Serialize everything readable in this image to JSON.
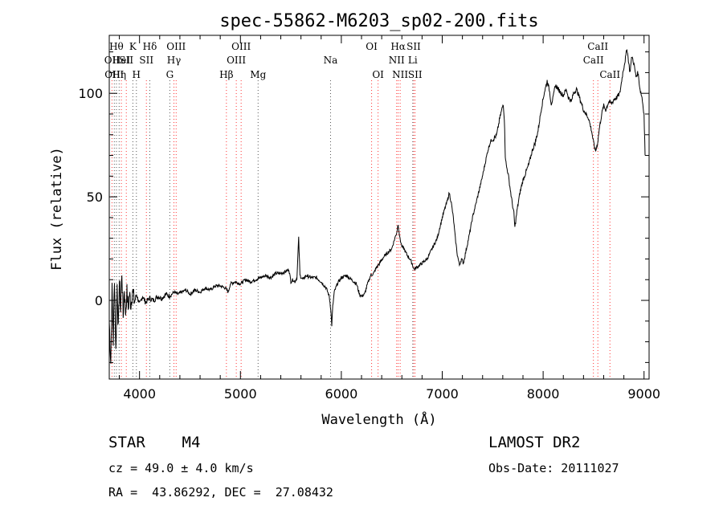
{
  "chart_data": {
    "type": "line",
    "title": "spec-55862-M6203_sp02-200.fits",
    "xlabel": "Wavelength (Å)",
    "ylabel": "Flux (relative)",
    "xlim": [
      3700,
      9050
    ],
    "ylim": [
      -38,
      128
    ],
    "xticks": [
      4000,
      5000,
      6000,
      7000,
      8000,
      9000
    ],
    "yticks": [
      0,
      50,
      100
    ],
    "grid": false,
    "legend": "none",
    "series": [
      {
        "color": "#000000",
        "points": [
          [
            3700,
            -10
          ],
          [
            3715,
            -30
          ],
          [
            3728,
            5
          ],
          [
            3740,
            -20
          ],
          [
            3752,
            12
          ],
          [
            3765,
            -25
          ],
          [
            3778,
            8
          ],
          [
            3790,
            -15
          ],
          [
            3800,
            10
          ],
          [
            3812,
            -5
          ],
          [
            3825,
            14
          ],
          [
            3838,
            -8
          ],
          [
            3850,
            6
          ],
          [
            3862,
            -6
          ],
          [
            3875,
            4
          ],
          [
            3888,
            -4
          ],
          [
            3900,
            3
          ],
          [
            3915,
            -2
          ],
          [
            3930,
            5
          ],
          [
            3950,
            -1
          ],
          [
            3970,
            3
          ],
          [
            4000,
            -2
          ],
          [
            4030,
            2
          ],
          [
            4060,
            -1
          ],
          [
            4100,
            1
          ],
          [
            4140,
            0
          ],
          [
            4180,
            2
          ],
          [
            4220,
            1
          ],
          [
            4260,
            3
          ],
          [
            4300,
            2
          ],
          [
            4340,
            4
          ],
          [
            4380,
            3
          ],
          [
            4420,
            4
          ],
          [
            4460,
            5
          ],
          [
            4500,
            3
          ],
          [
            4550,
            5
          ],
          [
            4600,
            4
          ],
          [
            4650,
            6
          ],
          [
            4700,
            5
          ],
          [
            4750,
            7
          ],
          [
            4800,
            7
          ],
          [
            4850,
            6
          ],
          [
            4880,
            4
          ],
          [
            4900,
            8
          ],
          [
            4950,
            9
          ],
          [
            5000,
            8
          ],
          [
            5050,
            10
          ],
          [
            5100,
            9
          ],
          [
            5150,
            10
          ],
          [
            5200,
            11
          ],
          [
            5250,
            12
          ],
          [
            5300,
            11
          ],
          [
            5350,
            13
          ],
          [
            5400,
            13
          ],
          [
            5450,
            14
          ],
          [
            5480,
            15
          ],
          [
            5500,
            9
          ],
          [
            5520,
            10
          ],
          [
            5540,
            9
          ],
          [
            5560,
            11
          ],
          [
            5577,
            30
          ],
          [
            5590,
            12
          ],
          [
            5620,
            10
          ],
          [
            5650,
            12
          ],
          [
            5700,
            11
          ],
          [
            5750,
            11
          ],
          [
            5800,
            9
          ],
          [
            5850,
            6
          ],
          [
            5880,
            2
          ],
          [
            5895,
            -4
          ],
          [
            5905,
            -12
          ],
          [
            5915,
            -3
          ],
          [
            5930,
            4
          ],
          [
            5960,
            8
          ],
          [
            6000,
            11
          ],
          [
            6050,
            12
          ],
          [
            6100,
            10
          ],
          [
            6150,
            8
          ],
          [
            6180,
            3
          ],
          [
            6200,
            2
          ],
          [
            6230,
            3
          ],
          [
            6260,
            8
          ],
          [
            6290,
            12
          ],
          [
            6320,
            13
          ],
          [
            6350,
            16
          ],
          [
            6380,
            18
          ],
          [
            6420,
            21
          ],
          [
            6460,
            23
          ],
          [
            6500,
            25
          ],
          [
            6530,
            30
          ],
          [
            6550,
            33
          ],
          [
            6563,
            37
          ],
          [
            6580,
            30
          ],
          [
            6600,
            26
          ],
          [
            6620,
            25
          ],
          [
            6650,
            22
          ],
          [
            6680,
            20
          ],
          [
            6700,
            18
          ],
          [
            6720,
            15
          ],
          [
            6750,
            16
          ],
          [
            6800,
            18
          ],
          [
            6850,
            20
          ],
          [
            6900,
            25
          ],
          [
            6950,
            30
          ],
          [
            7000,
            40
          ],
          [
            7030,
            45
          ],
          [
            7050,
            48
          ],
          [
            7070,
            52
          ],
          [
            7090,
            47
          ],
          [
            7110,
            40
          ],
          [
            7130,
            30
          ],
          [
            7150,
            22
          ],
          [
            7170,
            17
          ],
          [
            7190,
            20
          ],
          [
            7210,
            18
          ],
          [
            7240,
            25
          ],
          [
            7270,
            32
          ],
          [
            7300,
            40
          ],
          [
            7330,
            46
          ],
          [
            7360,
            52
          ],
          [
            7390,
            58
          ],
          [
            7420,
            65
          ],
          [
            7450,
            72
          ],
          [
            7480,
            77
          ],
          [
            7510,
            78
          ],
          [
            7540,
            80
          ],
          [
            7570,
            88
          ],
          [
            7590,
            92
          ],
          [
            7605,
            95
          ],
          [
            7615,
            88
          ],
          [
            7625,
            70
          ],
          [
            7635,
            65
          ],
          [
            7650,
            62
          ],
          [
            7670,
            55
          ],
          [
            7690,
            48
          ],
          [
            7710,
            42
          ],
          [
            7720,
            35
          ],
          [
            7740,
            43
          ],
          [
            7770,
            52
          ],
          [
            7800,
            58
          ],
          [
            7830,
            62
          ],
          [
            7860,
            66
          ],
          [
            7890,
            72
          ],
          [
            7920,
            76
          ],
          [
            7950,
            82
          ],
          [
            7980,
            92
          ],
          [
            8010,
            100
          ],
          [
            8040,
            106
          ],
          [
            8060,
            102
          ],
          [
            8080,
            95
          ],
          [
            8100,
            98
          ],
          [
            8120,
            104
          ],
          [
            8150,
            102
          ],
          [
            8180,
            100
          ],
          [
            8200,
            99
          ],
          [
            8230,
            102
          ],
          [
            8250,
            98
          ],
          [
            8280,
            96
          ],
          [
            8300,
            100
          ],
          [
            8330,
            102
          ],
          [
            8360,
            98
          ],
          [
            8400,
            92
          ],
          [
            8450,
            88
          ],
          [
            8480,
            82
          ],
          [
            8500,
            76
          ],
          [
            8520,
            72
          ],
          [
            8540,
            76
          ],
          [
            8560,
            84
          ],
          [
            8580,
            90
          ],
          [
            8600,
            94
          ],
          [
            8620,
            92
          ],
          [
            8650,
            96
          ],
          [
            8680,
            95
          ],
          [
            8700,
            97
          ],
          [
            8730,
            98
          ],
          [
            8760,
            100
          ],
          [
            8790,
            110
          ],
          [
            8820,
            118
          ],
          [
            8830,
            122
          ],
          [
            8845,
            116
          ],
          [
            8860,
            110
          ],
          [
            8880,
            118
          ],
          [
            8900,
            114
          ],
          [
            8920,
            108
          ],
          [
            8940,
            110
          ],
          [
            8960,
            102
          ],
          [
            8980,
            98
          ],
          [
            9000,
            90
          ],
          [
            9010,
            70
          ]
        ]
      }
    ],
    "lines": [
      {
        "wl": 3727,
        "color": "#ff3333",
        "labels": [
          {
            "text": "OII",
            "row": 1
          }
        ]
      },
      {
        "wl": 3750,
        "color": "#555555",
        "labels": [
          {
            "text": "OIII",
            "row": 2
          }
        ]
      },
      {
        "wl": 3771,
        "color": "#555555",
        "labels": [
          {
            "text": "Hθ",
            "row": 0
          }
        ]
      },
      {
        "wl": 3798,
        "color": "#555555",
        "labels": [
          {
            "text": "Hη",
            "row": 2
          }
        ]
      },
      {
        "wl": 3820,
        "color": "#ff3333",
        "labels": [
          {
            "text": "HeI",
            "row": 1
          }
        ]
      },
      {
        "wl": 3869,
        "color": "#ff3333",
        "labels": [
          {
            "text": "SII",
            "row": 1
          }
        ]
      },
      {
        "wl": 3934,
        "color": "#555555",
        "labels": [
          {
            "text": "K",
            "row": 0
          }
        ]
      },
      {
        "wl": 3969,
        "color": "#555555",
        "labels": [
          {
            "text": "H",
            "row": 2
          }
        ]
      },
      {
        "wl": 4068,
        "color": "#ff3333",
        "labels": [
          {
            "text": "SII",
            "row": 1
          }
        ]
      },
      {
        "wl": 4102,
        "color": "#555555",
        "labels": [
          {
            "text": "Hδ",
            "row": 0
          }
        ]
      },
      {
        "wl": 4300,
        "color": "#555555",
        "labels": [
          {
            "text": "G",
            "row": 2
          }
        ]
      },
      {
        "wl": 4341,
        "color": "#ff3333",
        "labels": [
          {
            "text": "Hγ",
            "row": 1
          }
        ]
      },
      {
        "wl": 4363,
        "color": "#ff3333",
        "labels": [
          {
            "text": "OIII",
            "row": 0
          }
        ]
      },
      {
        "wl": 4861,
        "color": "#ff3333",
        "labels": [
          {
            "text": "Hβ",
            "row": 2
          }
        ]
      },
      {
        "wl": 4959,
        "color": "#ff3333",
        "labels": [
          {
            "text": "OIII",
            "row": 1
          }
        ]
      },
      {
        "wl": 5007,
        "color": "#ff3333",
        "labels": [
          {
            "text": "OIII",
            "row": 0
          }
        ]
      },
      {
        "wl": 5175,
        "color": "#555555",
        "labels": [
          {
            "text": "Mg",
            "row": 2
          }
        ]
      },
      {
        "wl": 5893,
        "color": "#555555",
        "labels": [
          {
            "text": "Na",
            "row": 1
          }
        ]
      },
      {
        "wl": 6300,
        "color": "#ff3333",
        "labels": [
          {
            "text": "OI",
            "row": 0
          }
        ]
      },
      {
        "wl": 6364,
        "color": "#ff3333",
        "labels": [
          {
            "text": "OI",
            "row": 2
          }
        ]
      },
      {
        "wl": 6548,
        "color": "#ff3333",
        "labels": [
          {
            "text": "NII",
            "row": 1
          }
        ]
      },
      {
        "wl": 6563,
        "color": "#ff3333",
        "labels": [
          {
            "text": "Hα",
            "row": 0
          }
        ]
      },
      {
        "wl": 6583,
        "color": "#ff3333",
        "labels": [
          {
            "text": "NII",
            "row": 2
          }
        ]
      },
      {
        "wl": 6708,
        "color": "#555555",
        "labels": [
          {
            "text": "Li",
            "row": 1
          }
        ]
      },
      {
        "wl": 6717,
        "color": "#ff3333",
        "labels": [
          {
            "text": "SII",
            "row": 0
          }
        ]
      },
      {
        "wl": 6731,
        "color": "#ff3333",
        "labels": [
          {
            "text": "SII",
            "row": 2
          }
        ]
      },
      {
        "wl": 8498,
        "color": "#ff3333",
        "labels": [
          {
            "text": "CaII",
            "row": 1
          }
        ]
      },
      {
        "wl": 8542,
        "color": "#ff3333",
        "labels": [
          {
            "text": "CaII",
            "row": 0
          }
        ]
      },
      {
        "wl": 8662,
        "color": "#ff3333",
        "labels": [
          {
            "text": "CaII",
            "row": 2
          }
        ]
      }
    ]
  },
  "info": {
    "object": "STAR    M4",
    "survey": "LAMOST DR2",
    "cz": "cz = 49.0 ± 4.0 km/s",
    "obs_date": "Obs-Date: 20111027",
    "radec": "RA =  43.86292, DEC =  27.08432"
  }
}
